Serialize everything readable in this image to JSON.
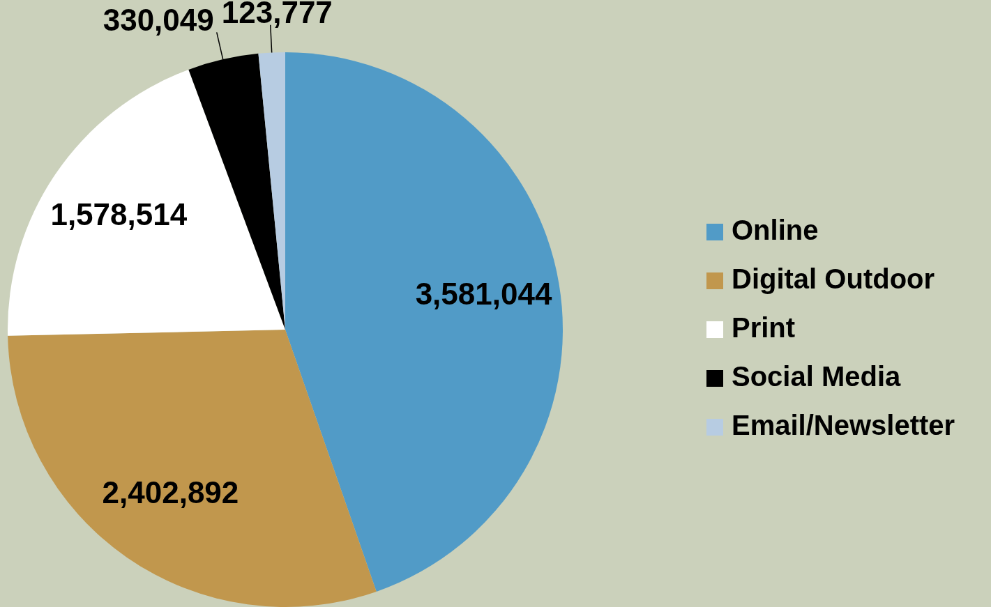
{
  "chart_data": {
    "type": "pie",
    "categories": [
      "Online",
      "Digital Outdoor",
      "Print",
      "Social Media",
      "Email/Newsletter"
    ],
    "values": [
      3581044,
      2402892,
      1578514,
      330049,
      123777
    ],
    "colors": [
      "#519bc7",
      "#c1974d",
      "#ffffff",
      "#000000",
      "#b7cce2"
    ],
    "value_labels": [
      "3,581,044",
      "2,402,892",
      "1,578,514",
      "330,049",
      "123,777"
    ],
    "legend": "right"
  }
}
